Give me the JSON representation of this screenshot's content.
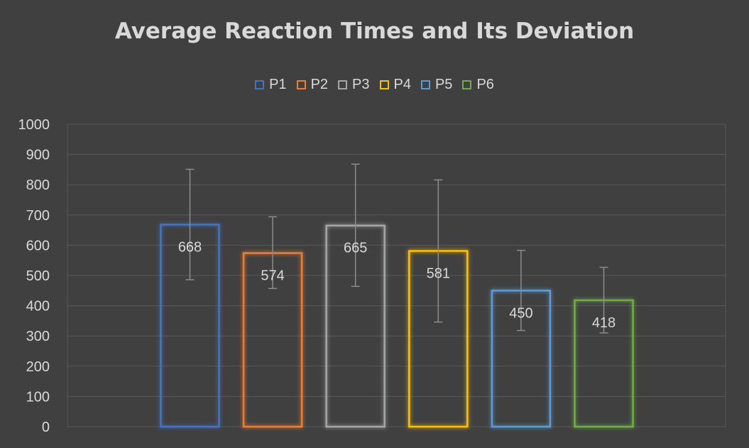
{
  "chart_data": {
    "type": "bar",
    "title": "Average Reaction Times and Its Deviation",
    "categories": [
      "P1",
      "P2",
      "P3",
      "P4",
      "P5",
      "P6"
    ],
    "values": [
      668,
      574,
      665,
      581,
      450,
      418
    ],
    "error_ranges": [
      [
        486,
        851
      ],
      [
        457,
        694
      ],
      [
        464,
        868
      ],
      [
        346,
        816
      ],
      [
        318,
        583
      ],
      [
        310,
        527
      ]
    ],
    "colors": [
      "#4472c4",
      "#ed7d31",
      "#a5a5a5",
      "#ffc000",
      "#5b9bd5",
      "#70ad47"
    ],
    "ylim": [
      0,
      1000
    ],
    "yticks": [
      0,
      100,
      200,
      300,
      400,
      500,
      600,
      700,
      800,
      900,
      1000
    ],
    "legend_position": "top",
    "grid": true,
    "data_labels": true,
    "xlabel": "",
    "ylabel": ""
  }
}
